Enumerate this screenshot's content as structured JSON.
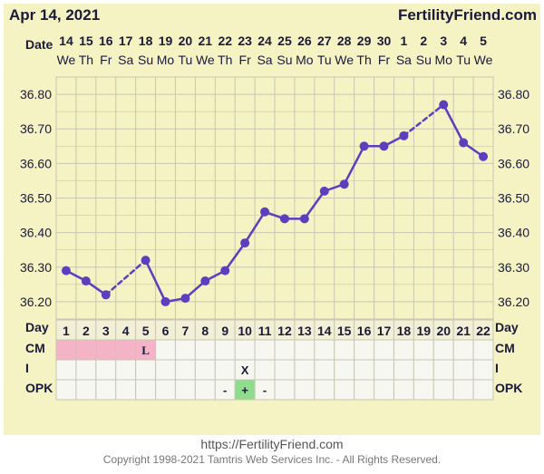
{
  "header": {
    "date_label": "Apr 14, 2021",
    "brand": "FertilityFriend.com"
  },
  "row_labels": {
    "date": "Date",
    "day": "Day",
    "cm": "CM",
    "i": "I",
    "opk": "OPK"
  },
  "footer": {
    "url": "https://FertilityFriend.com",
    "copyright": "Copyright 1998-2021 Tamtris Web Services Inc. - All Rights Reserved."
  },
  "colors": {
    "background": "#f5f2c4",
    "line": "#5b3fbf",
    "grid": "#c9c6b2",
    "menstruation": "#f4b3c6",
    "opk_positive": "#8fdc8f",
    "text": "#1a1a3a"
  },
  "chart_data": {
    "type": "line",
    "dates": [
      "14",
      "15",
      "16",
      "17",
      "18",
      "19",
      "20",
      "21",
      "22",
      "23",
      "24",
      "25",
      "26",
      "27",
      "28",
      "29",
      "30",
      "1",
      "2",
      "3",
      "4",
      "5"
    ],
    "weekdays": [
      "We",
      "Th",
      "Fr",
      "Sa",
      "Su",
      "Mo",
      "Tu",
      "We",
      "Th",
      "Fr",
      "Sa",
      "Su",
      "Mo",
      "Tu",
      "We",
      "Th",
      "Fr",
      "Sa",
      "Su",
      "Mo",
      "Tu",
      "We"
    ],
    "days": [
      "1",
      "2",
      "3",
      "4",
      "5",
      "6",
      "7",
      "8",
      "9",
      "10",
      "11",
      "12",
      "13",
      "14",
      "15",
      "16",
      "17",
      "18",
      "19",
      "20",
      "21",
      "22"
    ],
    "temperatures": [
      36.29,
      36.26,
      36.22,
      null,
      36.32,
      36.2,
      36.21,
      36.26,
      36.29,
      36.37,
      36.46,
      36.44,
      36.44,
      36.52,
      36.54,
      36.65,
      36.65,
      36.68,
      null,
      36.77,
      36.66,
      36.62
    ],
    "y_ticks": [
      "36.20",
      "36.30",
      "36.40",
      "36.50",
      "36.60",
      "36.70",
      "36.80"
    ],
    "ylim": [
      36.15,
      36.85
    ],
    "cm": [
      "",
      "",
      "",
      "",
      "L",
      "",
      "",
      "",
      "",
      "",
      "",
      "",
      "",
      "",
      "",
      "",
      "",
      "",
      "",
      "",
      "",
      ""
    ],
    "menstruation_days": [
      1,
      2,
      3,
      4,
      5
    ],
    "intercourse": [
      "",
      "",
      "",
      "",
      "",
      "",
      "",
      "",
      "",
      "X",
      "",
      "",
      "",
      "",
      "",
      "",
      "",
      "",
      "",
      "",
      "",
      ""
    ],
    "opk": [
      "",
      "",
      "",
      "",
      "",
      "",
      "",
      "",
      "-",
      "+",
      "-",
      "",
      "",
      "",
      "",
      "",
      "",
      "",
      "",
      "",
      "",
      ""
    ],
    "opk_positive_day": 10,
    "grid": true
  }
}
